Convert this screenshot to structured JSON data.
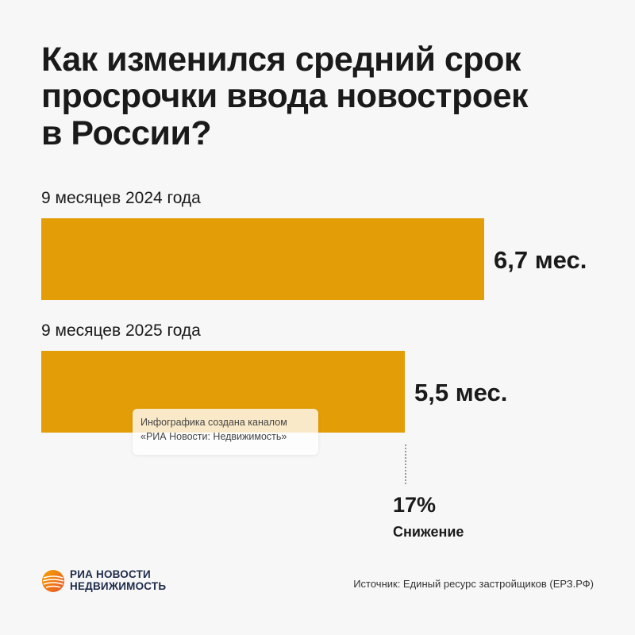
{
  "title_lines": [
    "Как изменился средний срок",
    "просрочки ввода новостроек",
    "в России?"
  ],
  "chart_data": {
    "type": "bar",
    "orientation": "horizontal",
    "title": "Как изменился средний срок просрочки ввода новостроек в России?",
    "categories": [
      "9 месяцев 2024 года",
      "9 месяцев 2025 года"
    ],
    "values": [
      6.7,
      5.5
    ],
    "value_labels": [
      "6,7 мес.",
      "5,5 мес."
    ],
    "unit": "мес.",
    "bar_color": "#e39d06",
    "annotation": {
      "value": "17%",
      "label": "Снижение"
    }
  },
  "watermark": {
    "line1": "Инфографика создана каналом",
    "line2": "«РИА Новости: Недвижимость»"
  },
  "brand": {
    "line1": "РИА НОВОСТИ",
    "line2": "НЕДВИЖИМОСТЬ",
    "icon": "ria-novosti-logo-icon",
    "colors": [
      "#f5a300",
      "#e8542a"
    ]
  },
  "source": "Источник: Единый ресурс застройщиков (ЕРЗ.РФ)"
}
